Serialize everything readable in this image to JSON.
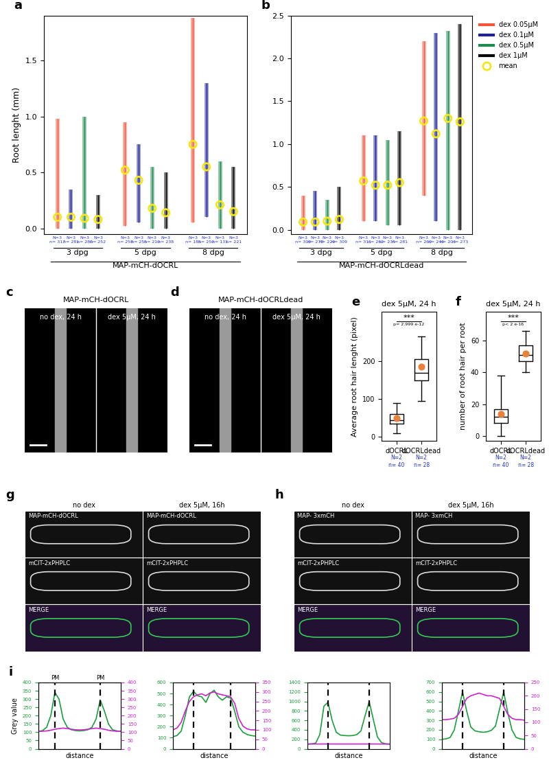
{
  "chart_data": [
    {
      "panel_label": "a",
      "type": "strip",
      "ylabel": "Root lenght (mm)",
      "groups": [
        "3 dpg",
        "5 dpg",
        "8 dpg"
      ],
      "group_axis_label": "MAP-mCH-dOCRL",
      "ylim": [
        -0.05,
        1.9
      ],
      "yticks": [
        {
          "value": 0,
          "label": "0.0"
        },
        {
          "value": 0.5,
          "label": "0.5"
        },
        {
          "value": 1.0,
          "label": "1.0"
        },
        {
          "value": 1.5,
          "label": "1.5"
        }
      ],
      "mean_name": "mean",
      "mean_color": "#f5e616",
      "series": [
        {
          "name": "dex 0.05µM",
          "color": "#f4553a",
          "mean": [
            0.1,
            0.52,
            0.75
          ],
          "min": [
            0,
            0.02,
            0.05
          ],
          "max": [
            0.98,
            0.95,
            1.88
          ]
        },
        {
          "name": "dex 0.1µM",
          "color": "#1f2196",
          "mean": [
            0.1,
            0.43,
            0.55
          ],
          "min": [
            0,
            0.05,
            0.1
          ],
          "max": [
            0.35,
            0.75,
            1.3
          ]
        },
        {
          "name": "dex 0.5µM",
          "color": "#1e8c4e",
          "mean": [
            0.09,
            0.18,
            0.21
          ],
          "min": [
            0,
            0,
            0
          ],
          "max": [
            1.0,
            0.55,
            0.6
          ]
        },
        {
          "name": "dex 1µM",
          "color": "#000000",
          "mean": [
            0.08,
            0.14,
            0.15
          ],
          "min": [
            0,
            0,
            0
          ],
          "max": [
            0.3,
            0.5,
            0.55
          ]
        }
      ],
      "sample_labels": [
        [
          "N=3",
          "n= 317"
        ],
        [
          "N=3",
          "n= 281"
        ],
        [
          "N=3",
          "n= 280"
        ],
        [
          "N=3",
          "n= 252"
        ],
        [
          "N=3",
          "n= 258"
        ],
        [
          "N=3",
          "n= 255"
        ],
        [
          "N=3",
          "n= 210"
        ],
        [
          "N=3",
          "n= 238"
        ],
        [
          "N=3",
          "n= 185"
        ],
        [
          "N=3",
          "n= 250"
        ],
        [
          "N=3",
          "n= 131"
        ],
        [
          "N=3",
          "n= 221"
        ]
      ]
    },
    {
      "panel_label": "b",
      "type": "strip",
      "groups": [
        "3 dpg",
        "5 dpg",
        "8 dpg"
      ],
      "group_axis_label": "MAP-mCH-dOCRLdead",
      "ylim": [
        -0.05,
        2.5
      ],
      "yticks": [
        {
          "value": 0,
          "label": "0.0"
        },
        {
          "value": 0.5,
          "label": "0.5"
        },
        {
          "value": 1.0,
          "label": "1.0"
        },
        {
          "value": 1.5,
          "label": "1.5"
        },
        {
          "value": 2.0,
          "label": "2.0"
        },
        {
          "value": 2.5,
          "label": "2.5"
        }
      ],
      "mean_name": "mean",
      "mean_color": "#f5e616",
      "legend": "upper left",
      "series": [
        {
          "name": "dex 0.05µM",
          "color": "#f4553a",
          "mean": [
            0.09,
            0.57,
            1.27
          ],
          "min": [
            0,
            0.1,
            0.4
          ],
          "max": [
            0.4,
            1.1,
            2.2
          ]
        },
        {
          "name": "dex 0.1µM",
          "color": "#1f2196",
          "mean": [
            0.09,
            0.52,
            1.12
          ],
          "min": [
            0,
            0.1,
            0.1
          ],
          "max": [
            0.45,
            1.1,
            2.3
          ]
        },
        {
          "name": "dex 0.5µM",
          "color": "#1e8c4e",
          "mean": [
            0.1,
            0.52,
            1.3
          ],
          "min": [
            0,
            0.05,
            0
          ],
          "max": [
            0.35,
            1.05,
            2.32
          ]
        },
        {
          "name": "dex 1µM",
          "color": "#000000",
          "mean": [
            0.12,
            0.55,
            1.26
          ],
          "min": [
            0,
            0.05,
            0
          ],
          "max": [
            0.5,
            1.15,
            2.4
          ]
        }
      ],
      "sample_labels": [
        [
          "N=3",
          "n= 309"
        ],
        [
          "N=3",
          "n= 278"
        ],
        [
          "N=3",
          "n= 229"
        ],
        [
          "N=3",
          "n= 309"
        ],
        [
          "N=3",
          "n= 311"
        ],
        [
          "N=3",
          "n= 262"
        ],
        [
          "N=3",
          "n= 235"
        ],
        [
          "N=3",
          "n= 281"
        ],
        [
          "N=3",
          "n= 260"
        ],
        [
          "N=3",
          "n= 246"
        ],
        [
          "N=3",
          "n= 203"
        ],
        [
          "N=3",
          "n= 273"
        ]
      ]
    },
    {
      "panel_label": "e",
      "type": "box",
      "title": "dex 5µM, 24 h",
      "ylabel": "Average root hair lenght (pixel)",
      "categories": [
        "dOCRL",
        "dOCRLdead"
      ],
      "ylim": [
        -10,
        330
      ],
      "yticks": [
        0,
        100,
        200
      ],
      "stats": [
        {
          "min": 10,
          "q1": 35,
          "median": 45,
          "q3": 60,
          "max": 90,
          "mean": 50
        },
        {
          "min": 95,
          "q1": 150,
          "median": 170,
          "q3": 205,
          "max": 265,
          "mean": 185
        }
      ],
      "mean_color": "#e8823a",
      "sample_labels": [
        [
          "N=2",
          "n= 40"
        ],
        [
          "N=2",
          "n= 28"
        ]
      ],
      "annotation": {
        "text": "***",
        "p_label": "p= 2.999 e-12"
      }
    },
    {
      "panel_label": "f",
      "type": "box",
      "title": "dex 5µM, 24 h",
      "ylabel": "number of root hair per root",
      "categories": [
        "dOCRL",
        "dOCRLdead"
      ],
      "ylim": [
        -3,
        78
      ],
      "yticks": [
        0,
        20,
        40,
        60
      ],
      "stats": [
        {
          "min": 0,
          "q1": 8,
          "median": 12,
          "q3": 17,
          "max": 38,
          "mean": 14
        },
        {
          "min": 40,
          "q1": 47,
          "median": 51,
          "q3": 57,
          "max": 66,
          "mean": 52
        }
      ],
      "mean_color": "#e8823a",
      "sample_labels": [
        [
          "N=2",
          "n= 40"
        ],
        [
          "N=2",
          "n= 28"
        ]
      ],
      "annotation": {
        "text": "***",
        "p_label": "p< 2 e-16"
      }
    },
    {
      "panel_label": "i",
      "type": "line",
      "xlabel": "distance",
      "ylabel": "Grey value",
      "tick_labels": "y",
      "x": [
        0,
        0.05,
        0.1,
        0.15,
        0.2,
        0.25,
        0.3,
        0.35,
        0.4,
        0.45,
        0.5,
        0.55,
        0.6,
        0.65,
        0.7,
        0.75,
        0.8,
        0.85,
        0.9,
        0.95,
        1.0
      ],
      "xlim": [
        0,
        1
      ],
      "xticks": [],
      "ylim": [
        0,
        400
      ],
      "yticks": [
        0,
        50,
        100,
        150,
        200,
        250,
        300,
        350,
        400
      ],
      "y2lim": [
        0,
        400
      ],
      "y2ticks": [
        0,
        50,
        100,
        150,
        200,
        250,
        300,
        350,
        400
      ],
      "vlines": [
        0.2,
        0.75
      ],
      "vline_labels": [
        "PM",
        "PM"
      ],
      "series": [
        {
          "color": "#1a9e3a",
          "values": [
            105,
            110,
            130,
            200,
            340,
            300,
            180,
            130,
            115,
            110,
            108,
            110,
            115,
            130,
            180,
            295,
            230,
            150,
            115,
            108,
            105
          ]
        },
        {
          "color": "#cc22cc",
          "axis": "y2",
          "values": [
            105,
            106,
            108,
            112,
            118,
            122,
            125,
            122,
            118,
            115,
            114,
            115,
            118,
            122,
            125,
            122,
            118,
            112,
            108,
            106,
            105
          ]
        }
      ]
    },
    {
      "type": "line",
      "xlabel": "distance",
      "tick_labels": "y",
      "x": [
        0,
        0.05,
        0.1,
        0.15,
        0.2,
        0.25,
        0.3,
        0.35,
        0.4,
        0.45,
        0.5,
        0.55,
        0.6,
        0.65,
        0.7,
        0.75,
        0.8,
        0.85,
        0.9,
        0.95,
        1.0
      ],
      "xlim": [
        0,
        1
      ],
      "xticks": [],
      "ylim": [
        0,
        600
      ],
      "yticks": [
        0,
        100,
        200,
        300,
        400,
        500,
        600
      ],
      "y2lim": [
        0,
        350
      ],
      "y2ticks": [
        0,
        50,
        100,
        150,
        200,
        250,
        300,
        350
      ],
      "vlines": [
        0.25,
        0.7
      ],
      "series": [
        {
          "color": "#1a9e3a",
          "values": [
            110,
            120,
            160,
            300,
            470,
            520,
            480,
            470,
            420,
            500,
            530,
            470,
            440,
            470,
            460,
            340,
            200,
            150,
            130,
            120,
            115
          ]
        },
        {
          "color": "#cc22cc",
          "axis": "y2",
          "values": [
            100,
            110,
            140,
            200,
            250,
            275,
            285,
            290,
            280,
            295,
            300,
            290,
            285,
            280,
            275,
            240,
            160,
            120,
            105,
            100,
            100
          ]
        }
      ]
    },
    {
      "type": "line",
      "xlabel": "distance",
      "tick_labels": "y",
      "x": [
        0,
        0.05,
        0.1,
        0.15,
        0.2,
        0.25,
        0.3,
        0.35,
        0.4,
        0.45,
        0.5,
        0.55,
        0.6,
        0.65,
        0.7,
        0.75,
        0.8,
        0.85,
        0.9,
        0.95,
        1.0
      ],
      "xlim": [
        0,
        1
      ],
      "xticks": [],
      "ylim": [
        0,
        1400
      ],
      "yticks": [
        0,
        200,
        400,
        600,
        800,
        1000,
        1200,
        1400
      ],
      "vlines": [
        0.25,
        0.75
      ],
      "series": [
        {
          "color": "#1a9e3a",
          "values": [
            100,
            105,
            120,
            300,
            900,
            980,
            600,
            350,
            290,
            280,
            275,
            280,
            300,
            380,
            700,
            1000,
            620,
            250,
            130,
            105,
            100
          ]
        },
        {
          "color": "#cc22cc",
          "values": [
            100,
            100,
            101,
            101,
            102,
            102,
            102,
            101,
            101,
            101,
            101,
            101,
            101,
            101,
            102,
            102,
            102,
            101,
            101,
            100,
            100
          ]
        }
      ]
    },
    {
      "type": "line",
      "xlabel": "distance",
      "tick_labels": "y",
      "x": [
        0,
        0.05,
        0.1,
        0.15,
        0.2,
        0.25,
        0.3,
        0.35,
        0.4,
        0.45,
        0.5,
        0.55,
        0.6,
        0.65,
        0.7,
        0.75,
        0.8,
        0.85,
        0.9,
        0.95,
        1.0
      ],
      "xlim": [
        0,
        1
      ],
      "xticks": [],
      "ylim": [
        0,
        700
      ],
      "yticks": [
        0,
        100,
        200,
        300,
        400,
        500,
        600,
        700
      ],
      "y2lim": [
        0,
        250
      ],
      "y2ticks": [
        0,
        50,
        100,
        150,
        200,
        250
      ],
      "vlines": [
        0.25,
        0.75
      ],
      "series": [
        {
          "color": "#1a9e3a",
          "values": [
            100,
            105,
            120,
            200,
            400,
            600,
            400,
            230,
            190,
            180,
            175,
            180,
            195,
            240,
            420,
            600,
            380,
            200,
            120,
            105,
            100
          ]
        },
        {
          "color": "#cc22cc",
          "axis": "y2",
          "values": [
            110,
            110,
            112,
            115,
            130,
            160,
            190,
            200,
            205,
            210,
            205,
            200,
            200,
            195,
            190,
            160,
            130,
            115,
            110,
            110,
            108
          ]
        }
      ]
    }
  ],
  "image_panels": [
    {
      "panel_label": "c",
      "kind": "roots",
      "title": "MAP-mCH-dOCRL",
      "conditions": [
        "no dex, 24 h",
        "dex 5µM, 24 h"
      ]
    },
    {
      "panel_label": "d",
      "kind": "roots",
      "title": "MAP-mCH-dOCRLdead",
      "conditions": [
        "no dex, 24 h",
        "dex 5µM, 24 h"
      ]
    },
    {
      "panel_label": "g",
      "kind": "hairs",
      "conditions": [
        "no dex",
        "dex 5µM, 16h"
      ],
      "rows": [
        "MAP-mCH-dOCRL",
        "mCIT-2xPHPLC",
        "MERGE"
      ]
    },
    {
      "panel_label": "h",
      "kind": "hairs",
      "conditions": [
        "no dex",
        "dex 5µM, 16h"
      ],
      "rows": [
        "MAP- 3xmCH",
        "mCIT-2xPHPLC",
        "MERGE"
      ]
    }
  ]
}
